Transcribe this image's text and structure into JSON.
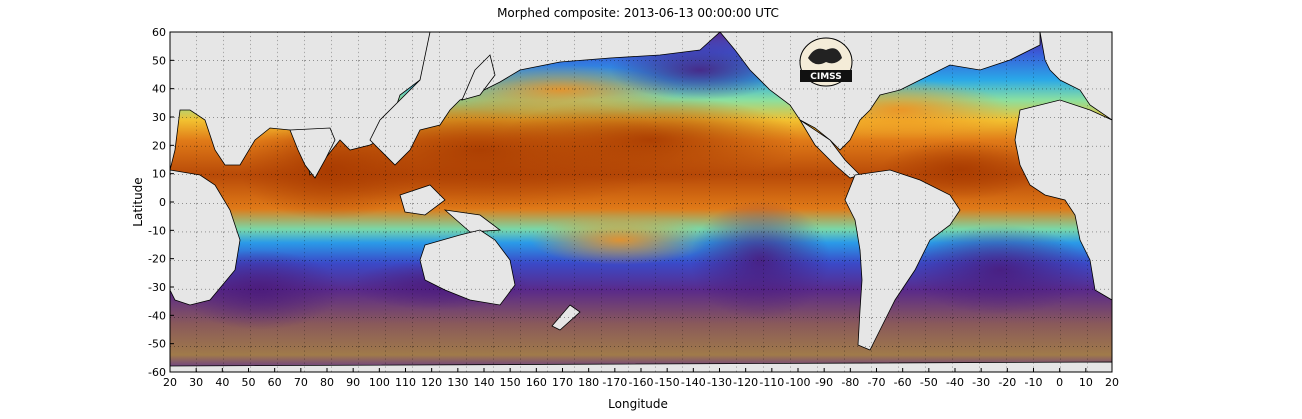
{
  "title": "Morphed composite: 2013-06-13 00:00:00 UTC",
  "xaxis": {
    "label": "Longitude",
    "ticks": [
      "20",
      "30",
      "40",
      "50",
      "60",
      "70",
      "80",
      "90",
      "100",
      "110",
      "120",
      "130",
      "140",
      "150",
      "160",
      "170",
      "180",
      "-170",
      "-160",
      "-150",
      "-140",
      "-130",
      "-120",
      "-110",
      "-100",
      "-90",
      "-80",
      "-70",
      "-60",
      "-50",
      "-40",
      "-30",
      "-20",
      "-10",
      "0",
      "10",
      "20"
    ]
  },
  "yaxis": {
    "label": "Latitude",
    "ticks": [
      "60",
      "50",
      "40",
      "30",
      "20",
      "10",
      "0",
      "-10",
      "-20",
      "-30",
      "-40",
      "-50",
      "-60"
    ]
  },
  "logo": {
    "text": "CIMSS"
  },
  "colors": {
    "land": "#e6e6e6",
    "tropical_moist": "#c85a0a",
    "moist": "#f39a2a",
    "mid": "#3a7bff",
    "dry": "#5a2a8a",
    "very_dry": "#8a6a55"
  }
}
